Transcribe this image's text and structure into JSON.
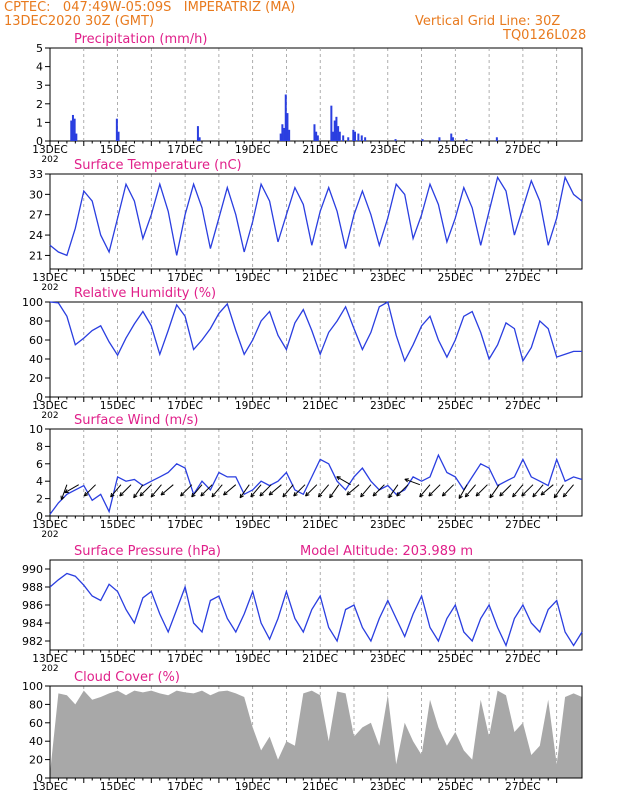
{
  "header": {
    "line1": "CPTEC:   047:49W-05:09S   IMPERATRIZ (MA)",
    "line2": "13DEC2020 30Z (GMT)",
    "grid_note": "Vertical Grid Line: 30Z",
    "code": "TQ0126L028"
  },
  "colors": {
    "header": "#e87a1e",
    "title": "#e0208a",
    "line": "#2a3ee0",
    "bar": "#2a3ee0",
    "cloud": "#a8a8a8",
    "wind_arrow": "#000000"
  },
  "x_ticks": [
    "13DEC",
    "15DEC",
    "17DEC",
    "19DEC",
    "21DEC",
    "23DEC",
    "25DEC",
    "27DEC"
  ],
  "x_axis_fragment": "202",
  "chart_data": [
    {
      "id": "precip",
      "type": "bar",
      "title": "Precipitation (mm/h)",
      "ylim": [
        0,
        5
      ],
      "yticks": [
        0,
        1,
        2,
        3,
        4,
        5
      ],
      "xlim_days": [
        13,
        28.75
      ],
      "x_days": [
        13.6,
        13.65,
        13.7,
        13.75,
        14.95,
        15.0,
        17.35,
        17.4,
        19.8,
        19.85,
        19.9,
        19.95,
        20.0,
        20.05,
        20.8,
        20.85,
        20.9,
        21.3,
        21.35,
        21.4,
        21.45,
        21.5,
        21.55,
        21.65,
        21.8,
        21.95,
        22.0,
        22.1,
        22.2,
        22.3,
        23.2,
        24.0,
        24.5,
        24.85,
        24.9,
        25.3,
        26.2
      ],
      "values": [
        1.1,
        1.4,
        1.2,
        0.4,
        1.2,
        0.5,
        0.8,
        0.2,
        0.4,
        0.9,
        0.7,
        2.5,
        1.5,
        0.6,
        0.9,
        0.5,
        0.3,
        1.9,
        0.5,
        1.1,
        1.3,
        0.8,
        0.5,
        0.3,
        0.2,
        0.6,
        0.5,
        0.4,
        0.3,
        0.2,
        0.1,
        0.1,
        0.2,
        0.4,
        0.2,
        0.1,
        0.2
      ]
    },
    {
      "id": "temp",
      "type": "line",
      "title": "Surface Temperature (nC)",
      "ylim": [
        19,
        33
      ],
      "yticks": [
        21,
        24,
        27,
        30,
        33
      ],
      "x_days": [
        13.0,
        13.25,
        13.5,
        13.75,
        14.0,
        14.25,
        14.5,
        14.75,
        15.0,
        15.25,
        15.5,
        15.75,
        16.0,
        16.25,
        16.5,
        16.75,
        17.0,
        17.25,
        17.5,
        17.75,
        18.0,
        18.25,
        18.5,
        18.75,
        19.0,
        19.25,
        19.5,
        19.75,
        20.0,
        20.25,
        20.5,
        20.75,
        21.0,
        21.25,
        21.5,
        21.75,
        22.0,
        22.25,
        22.5,
        22.75,
        23.0,
        23.25,
        23.5,
        23.75,
        24.0,
        24.25,
        24.5,
        24.75,
        25.0,
        25.25,
        25.5,
        25.75,
        26.0,
        26.25,
        26.5,
        26.75,
        27.0,
        27.25,
        27.5,
        27.75,
        28.0,
        28.25,
        28.5,
        28.75
      ],
      "values": [
        22.5,
        21.5,
        21.0,
        25.0,
        30.5,
        29.0,
        24.0,
        21.5,
        26.5,
        31.5,
        29.0,
        23.5,
        27.0,
        31.5,
        27.5,
        21.0,
        27.0,
        31.5,
        28.0,
        22.0,
        26.5,
        31.0,
        27.0,
        21.5,
        26.0,
        31.5,
        29.0,
        23.0,
        27.0,
        31.0,
        28.5,
        22.5,
        27.5,
        31.0,
        27.5,
        22.0,
        27.0,
        30.5,
        27.0,
        22.5,
        26.5,
        31.5,
        30.0,
        23.5,
        27.0,
        31.5,
        28.5,
        23.0,
        26.5,
        31.0,
        28.0,
        22.5,
        27.5,
        32.5,
        30.5,
        24.0,
        28.0,
        32.0,
        29.0,
        22.5,
        26.5,
        32.5,
        30.0,
        29.0
      ]
    },
    {
      "id": "rh",
      "type": "line",
      "title": "Relative Humidity (%)",
      "ylim": [
        0,
        100
      ],
      "yticks": [
        0,
        20,
        40,
        60,
        80,
        100
      ],
      "x_days": [
        13.0,
        13.25,
        13.5,
        13.75,
        14.0,
        14.25,
        14.5,
        14.75,
        15.0,
        15.25,
        15.5,
        15.75,
        16.0,
        16.25,
        16.5,
        16.75,
        17.0,
        17.25,
        17.5,
        17.75,
        18.0,
        18.25,
        18.5,
        18.75,
        19.0,
        19.25,
        19.5,
        19.75,
        20.0,
        20.25,
        20.5,
        20.75,
        21.0,
        21.25,
        21.5,
        21.75,
        22.0,
        22.25,
        22.5,
        22.75,
        23.0,
        23.25,
        23.5,
        23.75,
        24.0,
        24.25,
        24.5,
        24.75,
        25.0,
        25.25,
        25.5,
        25.75,
        26.0,
        26.25,
        26.5,
        26.75,
        27.0,
        27.25,
        27.5,
        27.75,
        28.0,
        28.25,
        28.5,
        28.75
      ],
      "values": [
        100,
        99,
        85,
        55,
        62,
        70,
        75,
        58,
        44,
        62,
        77,
        90,
        75,
        45,
        70,
        97,
        85,
        50,
        60,
        72,
        88,
        98,
        70,
        45,
        60,
        80,
        90,
        65,
        50,
        78,
        92,
        70,
        45,
        68,
        80,
        95,
        72,
        50,
        68,
        95,
        100,
        65,
        38,
        55,
        75,
        85,
        60,
        42,
        60,
        85,
        90,
        68,
        40,
        55,
        78,
        72,
        38,
        52,
        80,
        72,
        42,
        45,
        48,
        48
      ]
    },
    {
      "id": "wind",
      "type": "line",
      "title": "Surface Wind (m/s)",
      "ylim": [
        0,
        10
      ],
      "yticks": [
        0,
        2,
        4,
        6,
        8,
        10
      ],
      "x_days": [
        13.0,
        13.25,
        13.5,
        13.75,
        14.0,
        14.25,
        14.5,
        14.75,
        15.0,
        15.25,
        15.5,
        15.75,
        16.0,
        16.25,
        16.5,
        16.75,
        17.0,
        17.25,
        17.5,
        17.75,
        18.0,
        18.25,
        18.5,
        18.75,
        19.0,
        19.25,
        19.5,
        19.75,
        20.0,
        20.25,
        20.5,
        20.75,
        21.0,
        21.25,
        21.5,
        21.75,
        22.0,
        22.25,
        22.5,
        22.75,
        23.0,
        23.25,
        23.5,
        23.75,
        24.0,
        24.25,
        24.5,
        24.75,
        25.0,
        25.25,
        25.5,
        25.75,
        26.0,
        26.25,
        26.5,
        26.75,
        27.0,
        27.25,
        27.5,
        27.75,
        28.0,
        28.25,
        28.5,
        28.75
      ],
      "values": [
        0.2,
        1.5,
        2.5,
        3.0,
        3.5,
        1.8,
        2.5,
        0.5,
        4.5,
        4.0,
        4.2,
        3.5,
        4.0,
        4.5,
        5.0,
        6.0,
        5.5,
        2.5,
        4.0,
        3.0,
        5.0,
        4.5,
        4.5,
        2.5,
        3.0,
        4.0,
        3.5,
        4.0,
        5.0,
        3.0,
        2.5,
        4.5,
        6.5,
        6.0,
        4.0,
        3.0,
        4.5,
        5.5,
        4.0,
        3.0,
        3.5,
        2.5,
        3.0,
        4.5,
        4.0,
        4.5,
        7.0,
        5.0,
        4.5,
        3.0,
        4.5,
        6.0,
        5.5,
        3.5,
        4.0,
        4.5,
        6.5,
        4.5,
        4.0,
        3.5,
        6.5,
        4.0,
        4.5,
        4.2
      ],
      "barbs_x_days": [
        13.5,
        13.85,
        14.35,
        15.1,
        15.4,
        15.75,
        16.0,
        16.3,
        16.65,
        17.2,
        17.5,
        17.8,
        18.1,
        18.5,
        18.9,
        19.25,
        19.55,
        19.85,
        20.2,
        20.55,
        20.9,
        21.25,
        21.55,
        21.9,
        22.15,
        22.5,
        22.9,
        23.3,
        23.6,
        23.95,
        24.25,
        24.55,
        24.95,
        25.35,
        25.6,
        25.95,
        26.3,
        26.65,
        27.0,
        27.3,
        27.6,
        27.9,
        28.2,
        28.5
      ],
      "barbs_dir_deg": [
        200,
        240,
        225,
        220,
        225,
        215,
        225,
        220,
        230,
        225,
        220,
        225,
        220,
        230,
        215,
        220,
        225,
        230,
        220,
        225,
        225,
        220,
        215,
        300,
        230,
        220,
        225,
        215,
        225,
        290,
        220,
        225,
        225,
        210,
        220,
        225,
        215,
        225,
        220,
        225,
        220,
        230,
        215,
        220
      ]
    },
    {
      "id": "pres",
      "type": "line",
      "title": "Surface Pressure (hPa)",
      "annotation": "Model Altitude: 203.989 m",
      "ylim": [
        981,
        991
      ],
      "yticks": [
        982,
        984,
        986,
        988,
        990
      ],
      "x_days": [
        13.0,
        13.25,
        13.5,
        13.75,
        14.0,
        14.25,
        14.5,
        14.75,
        15.0,
        15.25,
        15.5,
        15.75,
        16.0,
        16.25,
        16.5,
        16.75,
        17.0,
        17.25,
        17.5,
        17.75,
        18.0,
        18.25,
        18.5,
        18.75,
        19.0,
        19.25,
        19.5,
        19.75,
        20.0,
        20.25,
        20.5,
        20.75,
        21.0,
        21.25,
        21.5,
        21.75,
        22.0,
        22.25,
        22.5,
        22.75,
        23.0,
        23.25,
        23.5,
        23.75,
        24.0,
        24.25,
        24.5,
        24.75,
        25.0,
        25.25,
        25.5,
        25.75,
        26.0,
        26.25,
        26.5,
        26.75,
        27.0,
        27.25,
        27.5,
        27.75,
        28.0,
        28.25,
        28.5,
        28.75
      ],
      "values": [
        988.0,
        988.8,
        989.5,
        989.2,
        988.2,
        987.0,
        986.5,
        988.3,
        987.5,
        985.5,
        984.0,
        986.8,
        987.5,
        985.0,
        983.0,
        985.5,
        988.0,
        984.0,
        983.0,
        986.5,
        987.0,
        984.5,
        983.0,
        985.0,
        987.5,
        984.0,
        982.2,
        984.5,
        987.5,
        984.5,
        983.0,
        985.5,
        987.0,
        983.5,
        982.0,
        985.5,
        986.0,
        983.5,
        982.0,
        984.5,
        986.5,
        984.5,
        982.5,
        985.0,
        987.0,
        983.5,
        982.0,
        984.5,
        986.0,
        983.0,
        982.0,
        984.5,
        986.0,
        983.5,
        981.5,
        984.5,
        986.0,
        984.0,
        983.0,
        985.5,
        986.5,
        983.0,
        981.5,
        983.0
      ]
    },
    {
      "id": "cloud",
      "type": "area",
      "title": "Cloud Cover (%)",
      "ylim": [
        0,
        100
      ],
      "yticks": [
        0,
        20,
        40,
        60,
        80,
        100
      ],
      "x_days": [
        13.0,
        13.25,
        13.5,
        13.75,
        14.0,
        14.25,
        14.5,
        14.75,
        15.0,
        15.25,
        15.5,
        15.75,
        16.0,
        16.25,
        16.5,
        16.75,
        17.0,
        17.25,
        17.5,
        17.75,
        18.0,
        18.25,
        18.5,
        18.75,
        19.0,
        19.25,
        19.5,
        19.75,
        20.0,
        20.25,
        20.5,
        20.75,
        21.0,
        21.25,
        21.5,
        21.75,
        22.0,
        22.25,
        22.5,
        22.75,
        23.0,
        23.25,
        23.5,
        23.75,
        24.0,
        24.25,
        24.5,
        24.75,
        25.0,
        25.25,
        25.5,
        25.75,
        26.0,
        26.25,
        26.5,
        26.75,
        27.0,
        27.25,
        27.5,
        27.75,
        28.0,
        28.25,
        28.5,
        28.75
      ],
      "values": [
        5,
        92,
        90,
        80,
        95,
        85,
        88,
        92,
        95,
        90,
        95,
        93,
        95,
        92,
        90,
        95,
        93,
        92,
        95,
        90,
        94,
        95,
        92,
        88,
        55,
        30,
        45,
        20,
        40,
        35,
        92,
        95,
        90,
        40,
        94,
        92,
        45,
        55,
        60,
        35,
        90,
        15,
        60,
        40,
        25,
        85,
        55,
        35,
        50,
        30,
        20,
        85,
        45,
        95,
        90,
        50,
        60,
        25,
        35,
        85,
        15,
        88,
        92,
        88
      ]
    }
  ]
}
